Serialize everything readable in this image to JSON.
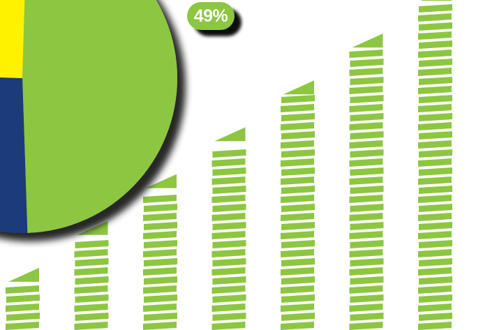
{
  "chart_data": [
    {
      "type": "pie",
      "slices": [
        {
          "label": "",
          "value": 49,
          "color": "#8dc641"
        },
        {
          "label": "",
          "value": 26,
          "color": "#1e3a7a"
        },
        {
          "label": "",
          "value": 25,
          "color": "#fff200"
        }
      ],
      "data_labels": [
        "49%"
      ]
    },
    {
      "type": "bar",
      "style": "striped columns, rising left to right",
      "categories": [
        "",
        "",
        "",
        "",
        "",
        "",
        ""
      ],
      "values": [
        1,
        2,
        3,
        4,
        5,
        6,
        7
      ],
      "color": "#8dc641"
    }
  ],
  "labels": {
    "pie_green_pct": "49%"
  }
}
